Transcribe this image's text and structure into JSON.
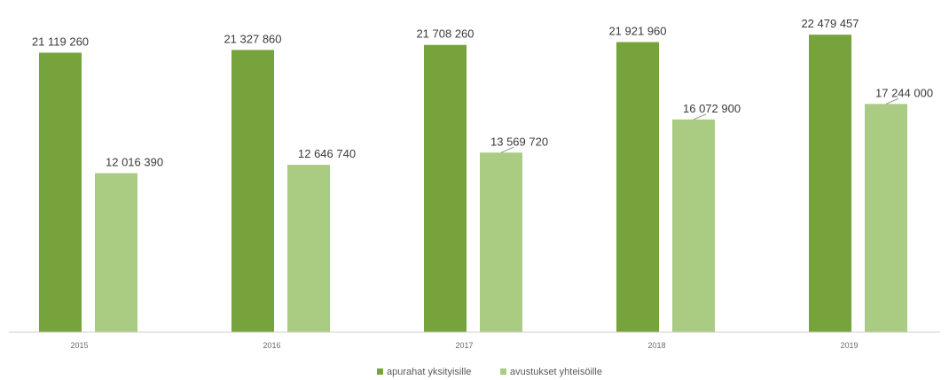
{
  "chart_data": {
    "type": "bar",
    "categories": [
      "2015",
      "2016",
      "2017",
      "2018",
      "2019"
    ],
    "series": [
      {
        "name": "apurahat yksityisille",
        "color": "#77a33c",
        "values": [
          21119260,
          21327860,
          21708260,
          21921960,
          22479457
        ],
        "labels": [
          "21 119 260",
          "21 327 860",
          "21 708 260",
          "21 921 960",
          "22 479 457"
        ]
      },
      {
        "name": "avustukset yhteisöille",
        "color": "#a9cc82",
        "values": [
          12016390,
          12646740,
          13569720,
          16072900,
          17244000
        ],
        "labels": [
          "12 016 390",
          "12 646 740",
          "13 569 720",
          "16 072 900",
          "17 244 000"
        ]
      }
    ],
    "ylim": [
      0,
      24000000
    ],
    "grid": false,
    "legend": "bottom"
  }
}
